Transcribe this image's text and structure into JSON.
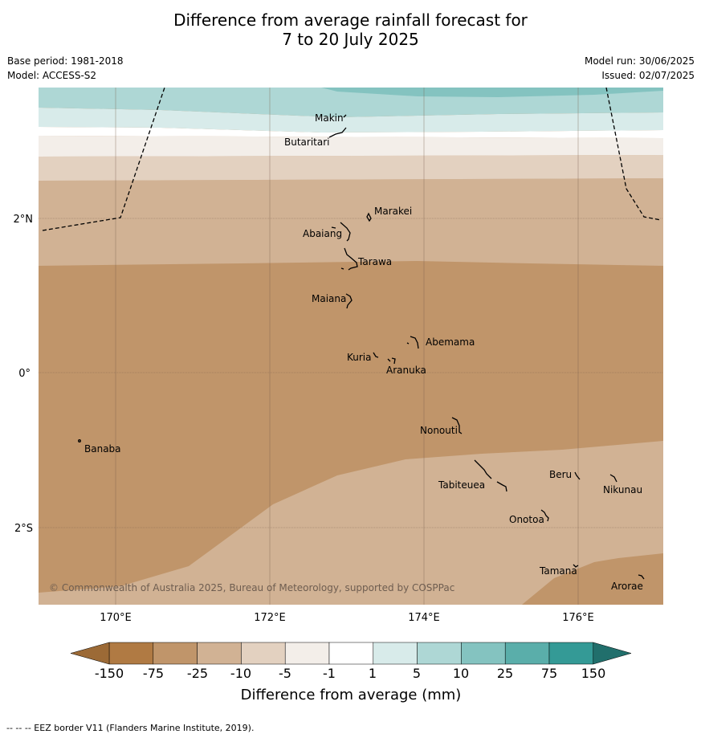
{
  "title": {
    "line1": "Difference from average rainfall forecast for",
    "line2": "7 to 20 July 2025"
  },
  "info": {
    "base_period": "Base period: 1981-2018",
    "model": "Model: ACCESS-S2",
    "model_run": "Model run: 30/06/2025",
    "issued": "Issued: 02/07/2025"
  },
  "map": {
    "x_ticks": [
      "170°E",
      "172°E",
      "174°E",
      "176°E"
    ],
    "y_ticks": [
      "2°N",
      "0°",
      "2°S"
    ],
    "islands": [
      "Makin",
      "Butaritari",
      "Marakei",
      "Abaiang",
      "Tarawa",
      "Maiana",
      "Abemama",
      "Kuria",
      "Aranuka",
      "Nonouti",
      "Banaba",
      "Tabiteuea",
      "Beru",
      "Nikunau",
      "Onotoa",
      "Tamana",
      "Arorae"
    ],
    "copyright": "© Commonwealth of Australia 2025, Bureau of Meteorology, supported by COSPPac"
  },
  "colorbar": {
    "labels": [
      "-150",
      "-75",
      "-25",
      "-10",
      "-5",
      "-1",
      "1",
      "5",
      "10",
      "25",
      "75",
      "150"
    ],
    "colors": [
      "#b07a43",
      "#c0956a",
      "#d1b294",
      "#e3d1c0",
      "#f3eee9",
      "#ffffff",
      "#d8ebea",
      "#aed7d5",
      "#84c3c0",
      "#5aaeaa",
      "#349a96"
    ],
    "title": "Difference from average (mm)"
  },
  "footer": "--  --  -- EEZ border V11 (Flanders Marine Institute, 2019)."
}
